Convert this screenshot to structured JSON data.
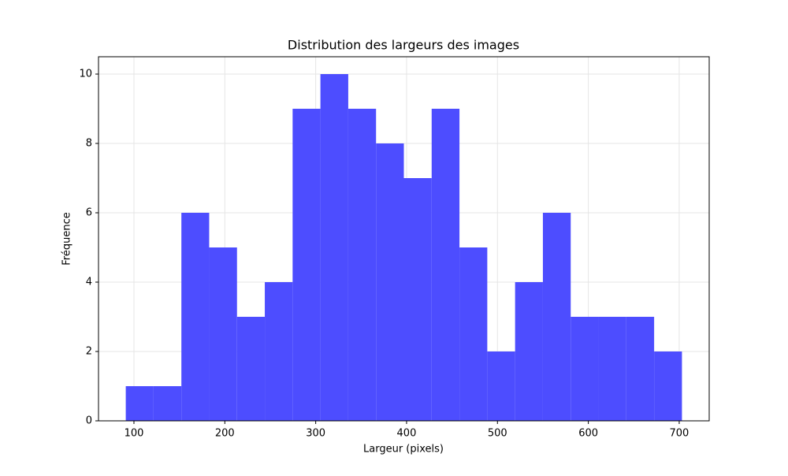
{
  "chart_data": {
    "type": "histogram",
    "title": "Distribution des largeurs des images",
    "x_label": "Largeur (pixels)",
    "y_label": "Fréquence",
    "bins": [
      91.0,
      121.6,
      152.2,
      182.8,
      213.4,
      244.0,
      274.6,
      305.2,
      335.8,
      366.4,
      397.0,
      427.6,
      458.2,
      488.8,
      519.4,
      550.0,
      580.6,
      611.2,
      641.8,
      672.4,
      703.0
    ],
    "values": [
      1,
      1,
      6,
      5,
      3,
      4,
      9,
      10,
      9,
      8,
      7,
      9,
      5,
      2,
      4,
      6,
      3,
      3,
      3,
      2
    ],
    "color": "#4d4dff",
    "xlim": [
      61,
      733
    ],
    "ylim": [
      0,
      10.5
    ],
    "xticks": [
      100,
      200,
      300,
      400,
      500,
      600,
      700
    ],
    "yticks": [
      0,
      2,
      4,
      6,
      8,
      10
    ],
    "grid": true
  }
}
